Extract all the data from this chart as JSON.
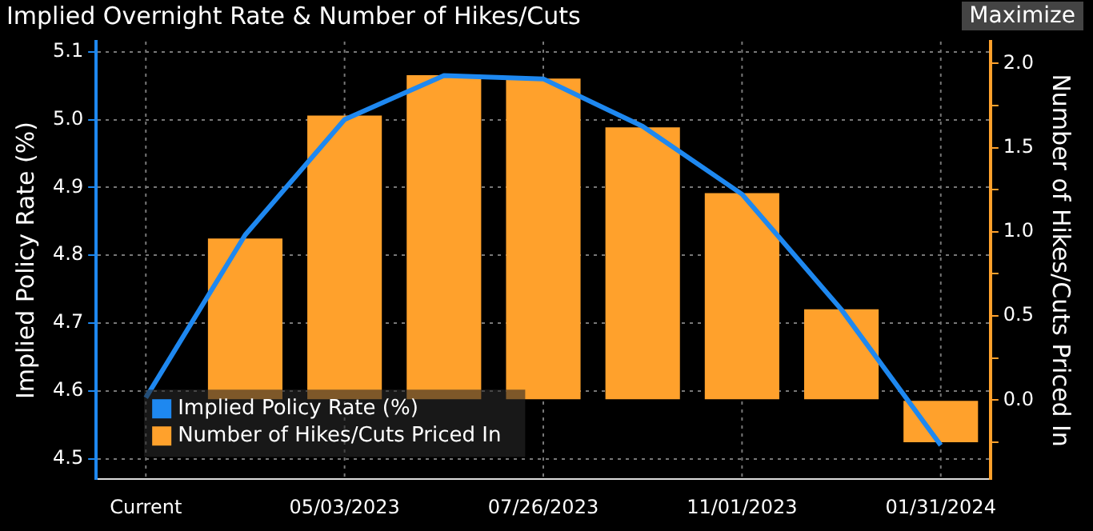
{
  "chart_data": {
    "type": "bar",
    "title": "Implied Overnight Rate & Number of Hikes/Cuts",
    "categories": [
      "Current",
      null,
      "05/03/2023",
      null,
      "07/26/2023",
      null,
      "11/01/2023",
      null,
      "01/31/2024"
    ],
    "series": [
      {
        "name": "Implied Policy Rate (%)",
        "type": "line",
        "color": "#1e88f0",
        "values": [
          4.59,
          4.83,
          5.0,
          5.065,
          5.06,
          4.99,
          4.89,
          4.72,
          4.52
        ]
      },
      {
        "name": "Number of Hikes/Cuts Priced In",
        "axis": "y2",
        "color": "#ffa12c",
        "values": [
          0,
          0.96,
          1.69,
          1.93,
          1.91,
          1.62,
          1.23,
          0.54,
          -0.25
        ]
      }
    ],
    "ylabel": "Implied Policy Rate (%)",
    "y2label": "Number of Hikes/Cuts Priced In",
    "ylim": [
      4.47,
      5.115
    ],
    "yticks": [
      4.5,
      4.6,
      4.7,
      4.8,
      4.9,
      {
        "value": 5,
        "label": "5.0"
      },
      5.1
    ],
    "y2lim": [
      -0.47,
      2.13
    ],
    "y2ticks": [
      {
        "value": -0.25,
        "label": null
      },
      {
        "value": 0,
        "label": "0.0"
      },
      {
        "value": 0.25,
        "label": null
      },
      {
        "value": 0.5,
        "label": "0.5"
      },
      {
        "value": 0.75,
        "label": null
      },
      {
        "value": 1,
        "label": "1.0"
      },
      {
        "value": 1.25,
        "label": null
      },
      {
        "value": 1.5,
        "label": "1.5"
      },
      {
        "value": 1.75,
        "label": null
      },
      {
        "value": 2,
        "label": "2.0"
      }
    ],
    "grid": true,
    "legend": "bottom left",
    "marker": "none",
    "annotations": [
      "Maximize"
    ]
  }
}
